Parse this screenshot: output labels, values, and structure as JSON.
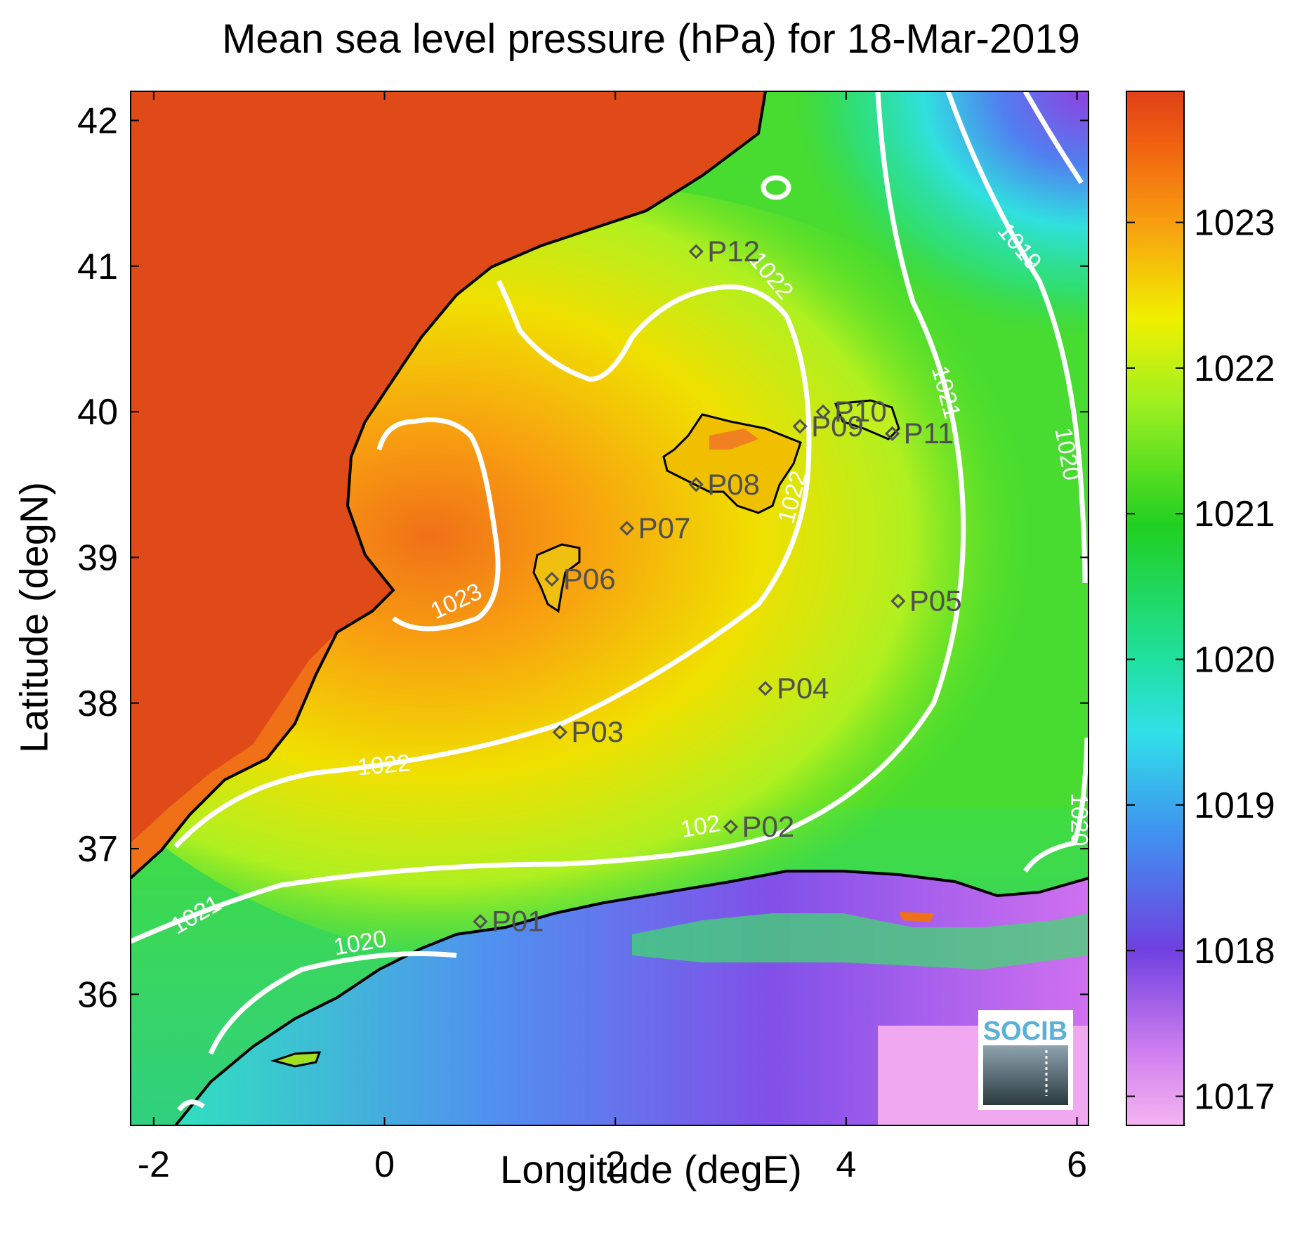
{
  "chart_data": {
    "type": "heatmap",
    "title": "Mean sea level pressure (hPa) for 18-Mar-2019",
    "xlabel": "Longitude (degE)",
    "ylabel": "Latitude (degN)",
    "xlim": [
      -2.2,
      6.1
    ],
    "ylim": [
      35.1,
      42.2
    ],
    "x_ticks": [
      -2,
      0,
      2,
      4,
      6
    ],
    "y_ticks": [
      36,
      37,
      38,
      39,
      40,
      41,
      42
    ],
    "colorbar": {
      "range": [
        1016.8,
        1023.9
      ],
      "ticks": [
        1017,
        1018,
        1019,
        1020,
        1021,
        1022,
        1023
      ]
    },
    "contour_labels": [
      {
        "text": "1023",
        "lon": 0.65,
        "lat": 38.65,
        "angle": -25
      },
      {
        "text": "1022",
        "lon": 3.6,
        "lat": 39.4,
        "angle": -75
      },
      {
        "text": "1022",
        "lon": 0.0,
        "lat": 37.52,
        "angle": -5
      },
      {
        "text": "1022",
        "lon": 3.3,
        "lat": 40.9,
        "angle": 50
      },
      {
        "text": "1021",
        "lon": 4.8,
        "lat": 40.12,
        "angle": 75
      },
      {
        "text": "102",
        "lon": 2.75,
        "lat": 37.1,
        "angle": -10
      },
      {
        "text": "1021",
        "lon": -1.6,
        "lat": 36.5,
        "angle": -30
      },
      {
        "text": "1020",
        "lon": -0.2,
        "lat": 36.3,
        "angle": -10
      },
      {
        "text": "1020",
        "lon": 5.85,
        "lat": 39.7,
        "angle": 80
      },
      {
        "text": "1020",
        "lon": 5.95,
        "lat": 37.2,
        "angle": 90
      },
      {
        "text": "1019",
        "lon": 5.45,
        "lat": 41.1,
        "angle": 50
      }
    ],
    "stations": [
      {
        "name": "P01",
        "lon": 0.83,
        "lat": 36.5
      },
      {
        "name": "P02",
        "lon": 3.0,
        "lat": 37.15
      },
      {
        "name": "P03",
        "lon": 1.52,
        "lat": 37.8
      },
      {
        "name": "P04",
        "lon": 3.3,
        "lat": 38.1
      },
      {
        "name": "P05",
        "lon": 4.45,
        "lat": 38.7
      },
      {
        "name": "P06",
        "lon": 1.45,
        "lat": 38.85
      },
      {
        "name": "P07",
        "lon": 2.1,
        "lat": 39.2
      },
      {
        "name": "P08",
        "lon": 2.7,
        "lat": 39.5
      },
      {
        "name": "P09",
        "lon": 3.6,
        "lat": 39.9
      },
      {
        "name": "P10",
        "lon": 3.8,
        "lat": 40.0
      },
      {
        "name": "P11",
        "lon": 4.4,
        "lat": 39.85
      },
      {
        "name": "P12",
        "lon": 2.7,
        "lat": 41.1
      }
    ]
  },
  "logo": {
    "text": "SOCIB"
  }
}
